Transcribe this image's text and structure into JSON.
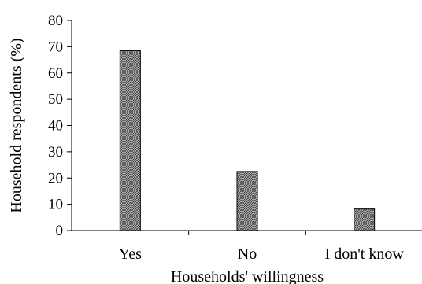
{
  "chart_data": {
    "type": "bar",
    "categories": [
      "Yes",
      "No",
      "I don't know"
    ],
    "values": [
      68.5,
      22.5,
      8.2
    ],
    "xlabel": "Households' willingness",
    "ylabel": "Household respondents (%)",
    "ylim": [
      0,
      80
    ],
    "yticks": [
      0,
      10,
      20,
      30,
      40,
      50,
      60,
      70,
      80
    ],
    "grid": false,
    "legend": "none",
    "bar_fill": "crosshatch",
    "colors": {
      "bar_stroke": "#000000",
      "hatch": "#555555",
      "axis": "#000000"
    }
  }
}
